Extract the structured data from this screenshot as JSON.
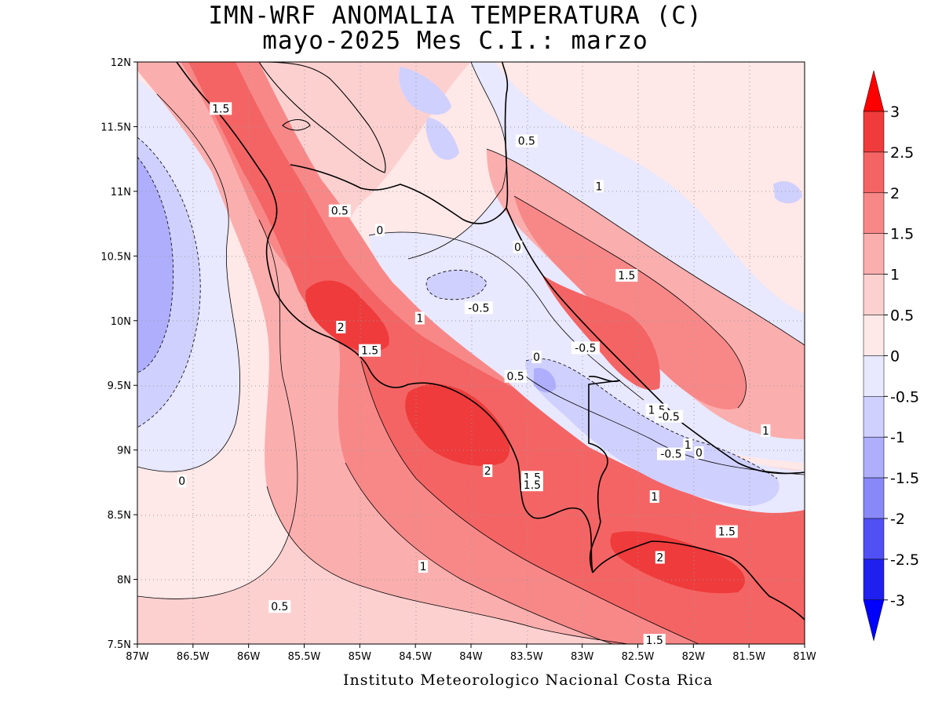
{
  "title": {
    "line1": "IMN-WRF  ANOMALIA TEMPERATURA (C)",
    "line2": "mayo-2025 Mes C.I.: marzo"
  },
  "credit": "Instituto Meteorologico Nacional Costa Rica",
  "map": {
    "lon_range": [
      -87,
      -81
    ],
    "lat_range": [
      7.5,
      12
    ],
    "x_ticks": [
      "87W",
      "86.5W",
      "86W",
      "85.5W",
      "85W",
      "84.5W",
      "84W",
      "83.5W",
      "83W",
      "82.5W",
      "82W",
      "81.5W",
      "81W"
    ],
    "y_ticks": [
      "7.5N",
      "8N",
      "8.5N",
      "9N",
      "9.5N",
      "10N",
      "10.5N",
      "11N",
      "11.5N",
      "12N"
    ],
    "grid": "dotted",
    "contour_labels": [
      {
        "text": "1.5",
        "lon": -86.25,
        "lat": 11.64
      },
      {
        "text": "0.5",
        "lon": -83.5,
        "lat": 11.39
      },
      {
        "text": "1",
        "lon": -82.85,
        "lat": 11.04
      },
      {
        "text": "0.5",
        "lon": -85.18,
        "lat": 10.85
      },
      {
        "text": "0",
        "lon": -84.82,
        "lat": 10.7
      },
      {
        "text": "0",
        "lon": -83.58,
        "lat": 10.57
      },
      {
        "text": "1.5",
        "lon": -82.6,
        "lat": 10.35
      },
      {
        "text": "-0.5",
        "lon": -83.93,
        "lat": 10.1
      },
      {
        "text": "1",
        "lon": -84.46,
        "lat": 10.02
      },
      {
        "text": "2",
        "lon": -85.17,
        "lat": 9.95
      },
      {
        "text": "-0.5",
        "lon": -82.97,
        "lat": 9.79
      },
      {
        "text": "1.5",
        "lon": -84.91,
        "lat": 9.77
      },
      {
        "text": "0",
        "lon": -83.41,
        "lat": 9.72
      },
      {
        "text": "0.5",
        "lon": -83.6,
        "lat": 9.57
      },
      {
        "text": "1.5",
        "lon": -82.33,
        "lat": 9.31
      },
      {
        "text": "-0.5",
        "lon": -82.22,
        "lat": 9.26
      },
      {
        "text": "1",
        "lon": -81.35,
        "lat": 9.15
      },
      {
        "text": "1",
        "lon": -82.05,
        "lat": 9.04
      },
      {
        "text": "-0.5",
        "lon": -82.2,
        "lat": 8.97
      },
      {
        "text": "0",
        "lon": -81.95,
        "lat": 8.98
      },
      {
        "text": "2",
        "lon": -83.85,
        "lat": 8.84
      },
      {
        "text": "1.5",
        "lon": -83.45,
        "lat": 8.79
      },
      {
        "text": "1.5",
        "lon": -83.45,
        "lat": 8.73
      },
      {
        "text": "0",
        "lon": -86.6,
        "lat": 8.76
      },
      {
        "text": "1",
        "lon": -82.35,
        "lat": 8.64
      },
      {
        "text": "1.5",
        "lon": -81.7,
        "lat": 8.37
      },
      {
        "text": "2",
        "lon": -82.3,
        "lat": 8.17
      },
      {
        "text": "1",
        "lon": -84.43,
        "lat": 8.1
      },
      {
        "text": "0.5",
        "lon": -85.72,
        "lat": 7.79
      },
      {
        "text": "1.5",
        "lon": -82.35,
        "lat": 7.53
      }
    ]
  },
  "colorbar": {
    "labels": [
      "3",
      "2.5",
      "2",
      "1.5",
      "1",
      "0.5",
      "0",
      "-0.5",
      "-1",
      "-1.5",
      "-2",
      "-2.5",
      "-3"
    ],
    "colors": [
      "#e60000",
      "#ef3b3b",
      "#f46464",
      "#f88888",
      "#fbaeae",
      "#fdd0d0",
      "#fee8e8",
      "#e8e8fe",
      "#d0d0fe",
      "#aeaefd",
      "#8888f8",
      "#5050f4",
      "#2020ee",
      "#0000e6"
    ],
    "top_arrow_color": "#ff0000",
    "bottom_arrow_color": "#0000ff"
  }
}
